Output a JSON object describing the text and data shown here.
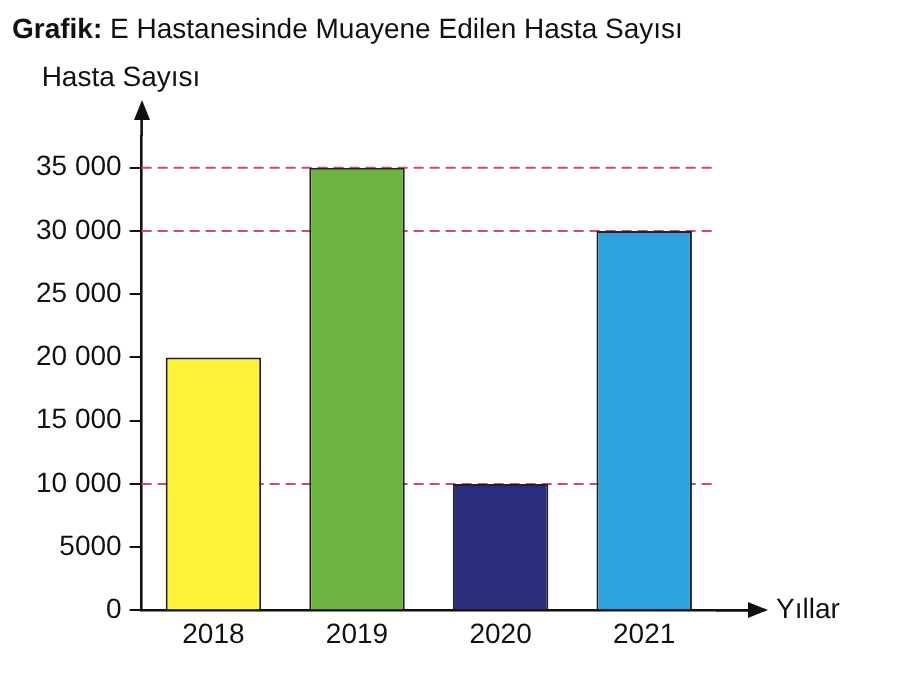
{
  "chart_data": {
    "type": "bar",
    "title": "Grafik: E Hastanesinde Muayene Edilen Hasta Sayısı",
    "ylabel": "Hasta Sayısı",
    "xlabel": "Yıllar",
    "categories": [
      "2018",
      "2019",
      "2020",
      "2021"
    ],
    "values": [
      20000,
      35000,
      10000,
      30000
    ],
    "colors": [
      "#fff23a",
      "#6cb33f",
      "#2b2c7c",
      "#2ea3dd"
    ],
    "ylim": [
      0,
      37500
    ],
    "yticks": [
      0,
      5000,
      {
        "value": 10000,
        "label": "10 000"
      },
      {
        "value": 15000,
        "label": "15 000"
      },
      {
        "value": 20000,
        "label": "20 000"
      },
      {
        "value": 25000,
        "label": "25 000"
      },
      {
        "value": 30000,
        "label": "30 000"
      },
      {
        "value": 35000,
        "label": "35 000"
      }
    ],
    "ref_lines": [
      {
        "axis": "y",
        "value": 35000,
        "color": "#e0407a",
        "line_style": "dashed"
      },
      {
        "axis": "y",
        "value": 30000,
        "color": "#e0407a",
        "line_style": "dashed"
      },
      {
        "axis": "y",
        "value": 10000,
        "color": "#e0407a",
        "line_style": "dashed"
      }
    ],
    "grid": false,
    "legend": false
  }
}
